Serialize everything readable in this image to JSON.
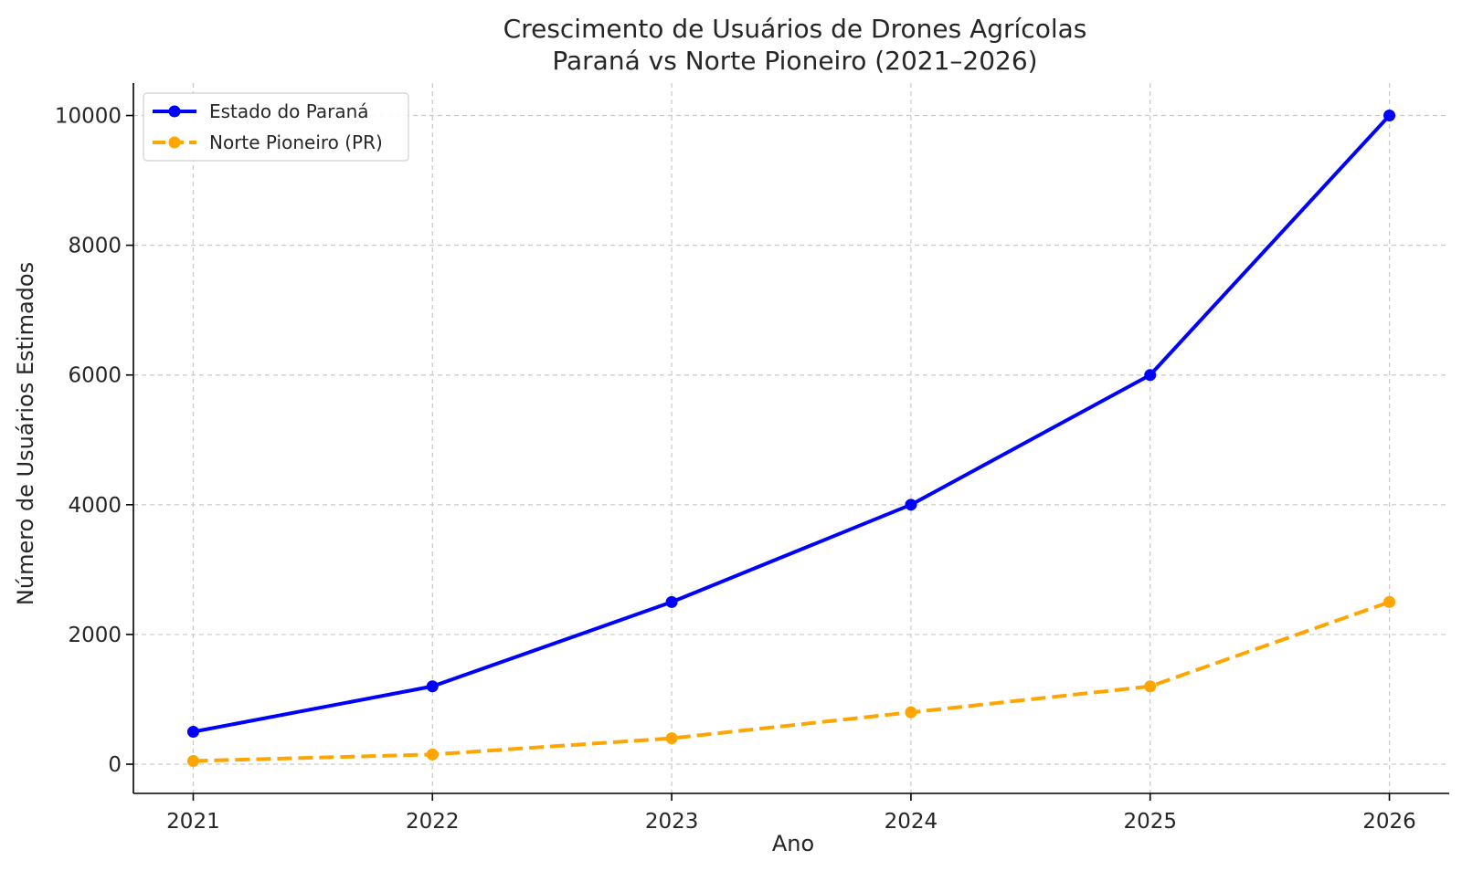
{
  "chart_data": {
    "type": "line",
    "title": "Crescimento de Usuários de Drones Agrícolas",
    "subtitle": "Paraná vs Norte Pioneiro (2021–2026)",
    "xlabel": "Ano",
    "ylabel": "Número de Usuários Estimados",
    "categories": [
      "2021",
      "2022",
      "2023",
      "2024",
      "2025",
      "2026"
    ],
    "x": [
      2021,
      2022,
      2023,
      2024,
      2025,
      2026
    ],
    "series": [
      {
        "name": "Estado do Paraná",
        "values": [
          500,
          1200,
          2500,
          4000,
          6000,
          10000
        ],
        "color": "#0000ff",
        "line_style": "solid",
        "marker": "circle"
      },
      {
        "name": "Norte Pioneiro (PR)",
        "values": [
          50,
          150,
          400,
          800,
          1200,
          2500
        ],
        "color": "#ffa500",
        "line_style": "dashed",
        "marker": "circle"
      }
    ],
    "xlim": [
      2020.75,
      2026.25
    ],
    "ylim": [
      -450,
      10500
    ],
    "yticks": [
      0,
      2000,
      4000,
      6000,
      8000,
      10000
    ],
    "ytick_labels": [
      "0",
      "2000",
      "4000",
      "6000",
      "8000",
      "10000"
    ],
    "grid": true,
    "legend_position": "upper left"
  }
}
